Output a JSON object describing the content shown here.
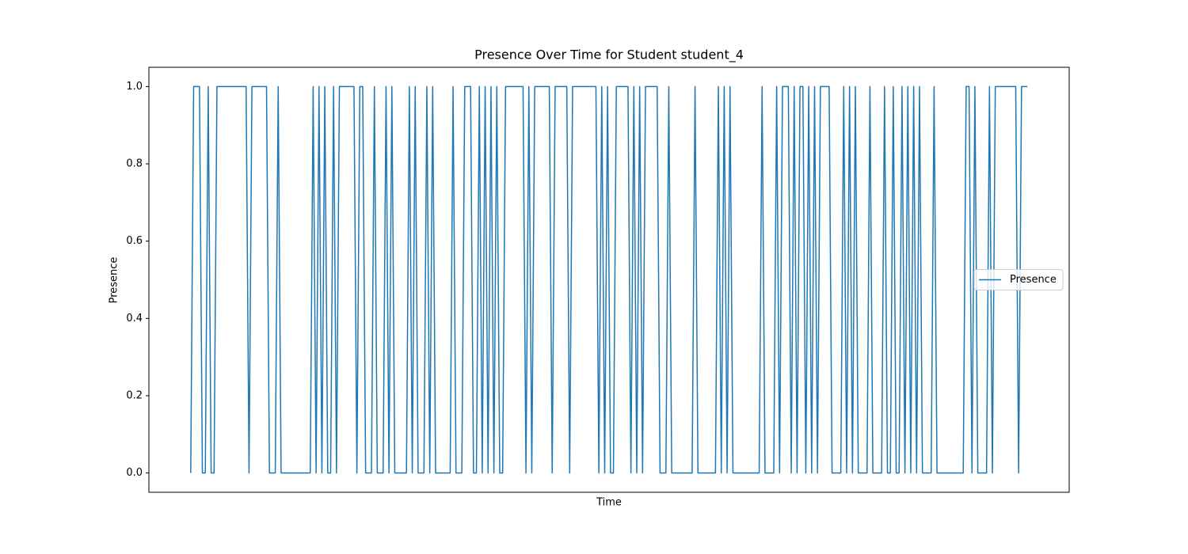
{
  "chart_data": {
    "type": "line",
    "title": "Presence Over Time for Student student_4",
    "xlabel": "Time",
    "ylabel": "Presence",
    "series": [
      {
        "name": "Presence",
        "color": "#1f77b4",
        "values": [
          0,
          1,
          1,
          1,
          0,
          0,
          1,
          0,
          0,
          1,
          1,
          1,
          1,
          1,
          1,
          1,
          1,
          1,
          1,
          1,
          0,
          1,
          1,
          1,
          1,
          1,
          1,
          0,
          0,
          0,
          1,
          0,
          0,
          0,
          0,
          0,
          0,
          0,
          0,
          0,
          0,
          0,
          1,
          0,
          1,
          0,
          1,
          0,
          0,
          1,
          0,
          1,
          1,
          1,
          1,
          1,
          1,
          0,
          1,
          1,
          0,
          0,
          0,
          1,
          0,
          0,
          0,
          1,
          0,
          1,
          0,
          0,
          0,
          0,
          0,
          1,
          0,
          1,
          0,
          0,
          0,
          1,
          0,
          1,
          0,
          0,
          0,
          0,
          0,
          0,
          1,
          0,
          0,
          0,
          1,
          1,
          1,
          0,
          0,
          1,
          0,
          1,
          0,
          1,
          0,
          1,
          0,
          0,
          1,
          1,
          1,
          1,
          1,
          1,
          1,
          0,
          1,
          0,
          1,
          1,
          1,
          1,
          1,
          1,
          0,
          1,
          1,
          1,
          1,
          1,
          0,
          1,
          1,
          1,
          1,
          1,
          1,
          1,
          1,
          1,
          0,
          1,
          0,
          1,
          0,
          0,
          1,
          1,
          1,
          1,
          1,
          0,
          1,
          0,
          1,
          0,
          1,
          1,
          1,
          1,
          1,
          0,
          0,
          0,
          1,
          0,
          0,
          0,
          0,
          0,
          0,
          0,
          0,
          1,
          0,
          0,
          0,
          0,
          0,
          0,
          0,
          1,
          0,
          1,
          0,
          1,
          0,
          0,
          0,
          0,
          0,
          0,
          0,
          0,
          0,
          0,
          1,
          0,
          0,
          0,
          0,
          1,
          0,
          1,
          1,
          1,
          0,
          1,
          0,
          1,
          1,
          0,
          1,
          0,
          1,
          0,
          1,
          1,
          1,
          1,
          0,
          0,
          0,
          0,
          1,
          0,
          1,
          0,
          1,
          0,
          0,
          0,
          0,
          1,
          0,
          0,
          0,
          0,
          1,
          0,
          0,
          1,
          0,
          0,
          1,
          0,
          1,
          0,
          1,
          0,
          1,
          0,
          0,
          0,
          0,
          1,
          0,
          0,
          0,
          0,
          0,
          0,
          0,
          0,
          0,
          0,
          1,
          1,
          0,
          1,
          0,
          0,
          0,
          0,
          1,
          0,
          1,
          1,
          1,
          1,
          1,
          1,
          1,
          1,
          0,
          1,
          1,
          1
        ]
      }
    ],
    "ylim": [
      -0.05,
      1.05
    ],
    "yticks": [
      {
        "value": 0,
        "label": "0.0"
      },
      0.2,
      0.4,
      0.6,
      0.8,
      {
        "value": 1,
        "label": "1.0"
      }
    ],
    "legend": "center right"
  }
}
